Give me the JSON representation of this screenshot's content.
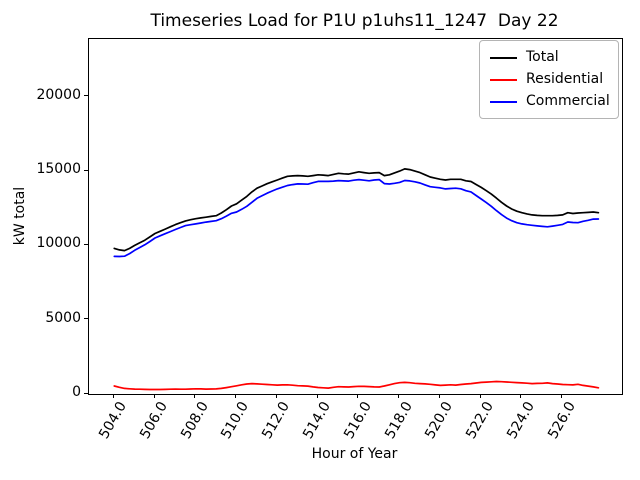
{
  "figure": {
    "background": "#ffffff"
  },
  "chart_data": {
    "type": "line",
    "title": "Timeseries Load for P1U p1uhs11_1247  Day 22",
    "xlabel": "Hour of Year",
    "ylabel": "kW total",
    "grid": false,
    "legend_position": "upper right",
    "xlim": [
      502.76,
      528.91
    ],
    "ylim": [
      0,
      23890
    ],
    "x_tick_labels": [
      "504.0",
      "506.0",
      "508.0",
      "510.0",
      "512.0",
      "514.0",
      "516.0",
      "518.0",
      "520.0",
      "522.0",
      "524.0",
      "526.0"
    ],
    "x_tick_values": [
      504,
      506,
      508,
      510,
      512,
      514,
      516,
      518,
      520,
      522,
      524,
      526
    ],
    "y_tick_labels": [
      "0",
      "5000",
      "10000",
      "15000",
      "20000"
    ],
    "y_tick_values": [
      0,
      5000,
      10000,
      15000,
      20000
    ],
    "x_start": 504.0,
    "x_step": 0.25,
    "series": [
      {
        "name": "Total",
        "color": "#000000",
        "values": [
          9800,
          9700,
          9650,
          9800,
          10000,
          10180,
          10350,
          10570,
          10800,
          10950,
          11100,
          11250,
          11400,
          11530,
          11650,
          11730,
          11800,
          11850,
          11900,
          11950,
          12000,
          12180,
          12400,
          12650,
          12800,
          13050,
          13300,
          13600,
          13850,
          14000,
          14150,
          14280,
          14400,
          14530,
          14650,
          14680,
          14700,
          14680,
          14650,
          14700,
          14750,
          14730,
          14700,
          14780,
          14850,
          14820,
          14800,
          14880,
          14950,
          14900,
          14850,
          14880,
          14900,
          14700,
          14750,
          14880,
          15000,
          15150,
          15100,
          15000,
          14900,
          14750,
          14600,
          14520,
          14450,
          14400,
          14450,
          14450,
          14450,
          14350,
          14300,
          14100,
          13900,
          13680,
          13450,
          13180,
          12900,
          12650,
          12450,
          12300,
          12200,
          12120,
          12050,
          12020,
          12000,
          12000,
          12000,
          12020,
          12050,
          12200,
          12150,
          12180,
          12200,
          12220,
          12250,
          12200
        ]
      },
      {
        "name": "Residential",
        "color": "#ff0000",
        "values": [
          540,
          450,
          380,
          350,
          330,
          320,
          310,
          305,
          300,
          305,
          310,
          320,
          330,
          325,
          320,
          335,
          350,
          340,
          330,
          335,
          340,
          380,
          430,
          490,
          550,
          620,
          670,
          700,
          680,
          660,
          640,
          620,
          600,
          610,
          620,
          590,
          560,
          545,
          530,
          480,
          440,
          420,
          395,
          450,
          490,
          480,
          470,
          495,
          520,
          510,
          500,
          480,
          470,
          540,
          620,
          700,
          760,
          780,
          760,
          720,
          700,
          680,
          650,
          610,
          580,
          600,
          620,
          600,
          640,
          670,
          700,
          740,
          780,
          800,
          820,
          840,
          830,
          810,
          790,
          770,
          750,
          725,
          700,
          710,
          720,
          750,
          700,
          670,
          640,
          625,
          610,
          650,
          580,
          530,
          480,
          420
        ]
      },
      {
        "name": "Commercial",
        "color": "#0000ff",
        "values": [
          9260,
          9250,
          9270,
          9450,
          9670,
          9860,
          10040,
          10265,
          10500,
          10645,
          10790,
          10930,
          11070,
          11205,
          11330,
          11395,
          11450,
          11510,
          11570,
          11615,
          11660,
          11800,
          11970,
          12160,
          12250,
          12430,
          12630,
          12900,
          13170,
          13340,
          13510,
          13660,
          13800,
          13920,
          14030,
          14090,
          14140,
          14135,
          14120,
          14220,
          14310,
          14310,
          14305,
          14330,
          14360,
          14340,
          14330,
          14385,
          14430,
          14390,
          14350,
          14400,
          14430,
          14160,
          14130,
          14180,
          14240,
          14370,
          14340,
          14280,
          14200,
          14070,
          13950,
          13910,
          13870,
          13800,
          13830,
          13850,
          13810,
          13680,
          13600,
          13360,
          13120,
          12880,
          12630,
          12340,
          12070,
          11840,
          11660,
          11530,
          11450,
          11395,
          11350,
          11310,
          11280,
          11250,
          11300,
          11350,
          11410,
          11575,
          11540,
          11530,
          11620,
          11690,
          11770,
          11780
        ]
      }
    ]
  }
}
